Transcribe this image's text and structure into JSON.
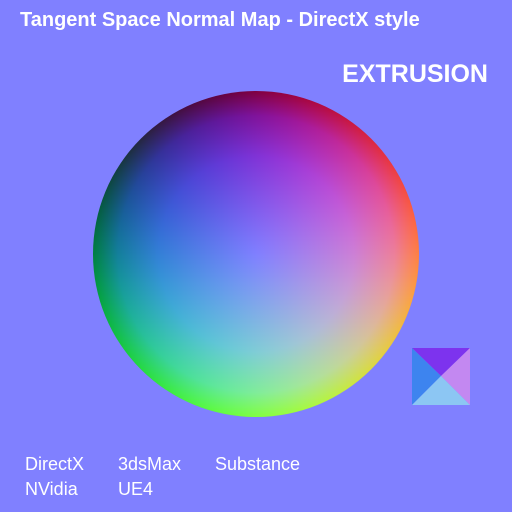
{
  "header": {
    "title": "Tangent Space Normal Map - DirectX style",
    "subtitle": "EXTRUSION"
  },
  "background_color": "#8080ff",
  "software": {
    "row1": [
      "DirectX",
      "3dsMax",
      "Substance"
    ],
    "row2": [
      "NVidia",
      "UE4"
    ]
  },
  "swatch": {
    "top_color": "#7d33ee",
    "left_color": "#3d84ef",
    "right_color": "#c388f1",
    "bottom_color": "#8cc6f3"
  }
}
